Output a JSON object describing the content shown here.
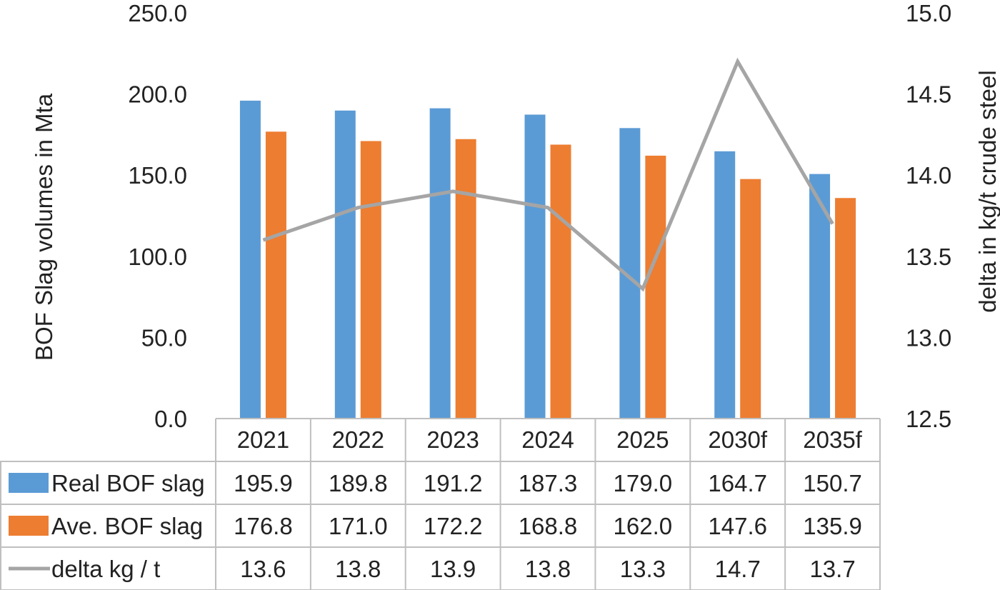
{
  "chart_data": {
    "type": "bar",
    "categories": [
      "2021",
      "2022",
      "2023",
      "2024",
      "2025",
      "2030f",
      "2035f"
    ],
    "series": [
      {
        "name": "Real BOF slag",
        "kind": "bar",
        "axis": "left",
        "color": "#5b9bd5",
        "values": [
          195.9,
          189.8,
          191.2,
          187.3,
          179.0,
          164.7,
          150.7
        ],
        "labels": [
          "195.9",
          "189.8",
          "191.2",
          "187.3",
          "179.0",
          "164.7",
          "150.7"
        ]
      },
      {
        "name": "Ave. BOF slag",
        "kind": "bar",
        "axis": "left",
        "color": "#ed7d31",
        "values": [
          176.8,
          171.0,
          172.2,
          168.8,
          162.0,
          147.6,
          135.9
        ],
        "labels": [
          "176.8",
          "171.0",
          "172.2",
          "168.8",
          "162.0",
          "147.6",
          "135.9"
        ]
      },
      {
        "name": "delta kg / t",
        "kind": "line",
        "axis": "right",
        "color": "#a5a5a5",
        "values": [
          13.6,
          13.8,
          13.9,
          13.8,
          13.3,
          14.7,
          13.7
        ],
        "labels": [
          "13.6",
          "13.8",
          "13.9",
          "13.8",
          "13.3",
          "14.7",
          "13.7"
        ]
      }
    ],
    "ylabel": "BOF Slag volumes in Mta",
    "y2label": "delta in kg/t crude steel",
    "ylim": [
      0,
      250
    ],
    "y2lim": [
      12.5,
      15
    ],
    "yticks": [
      "0.0",
      "50.0",
      "100.0",
      "150.0",
      "200.0",
      "250.0"
    ],
    "y2ticks": [
      "12.5",
      "13.0",
      "13.5",
      "14.0",
      "14.5",
      "15.0"
    ],
    "grid": false,
    "legend": "data-table"
  }
}
